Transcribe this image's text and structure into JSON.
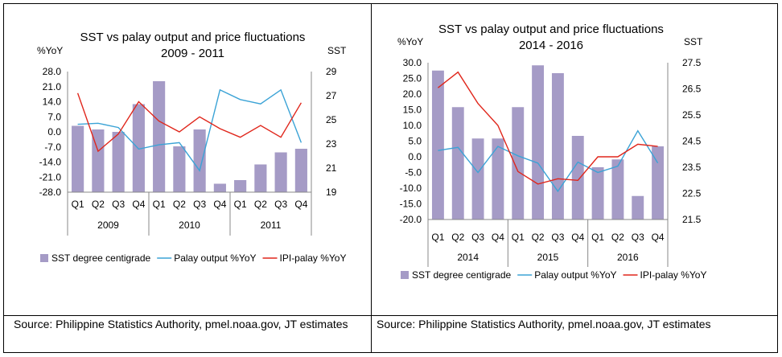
{
  "colors": {
    "bar": "#a59bc6",
    "palay": "#3ba3d6",
    "ipi": "#e0261b",
    "axis": "#888888"
  },
  "charts": [
    {
      "chart_data": {
        "type": "bar+line",
        "title": "SST vs palay output and price fluctuations",
        "subtitle": "2009 - 2011",
        "ylabel_left": "%YoY",
        "ylabel_right": "SST",
        "left_ylim": [
          -28,
          28
        ],
        "left_ticks": [
          "28.0",
          "21.0",
          "14.0",
          "7.0",
          "0.0",
          "-7.0",
          "-14.0",
          "-21.0",
          "-28.0"
        ],
        "right_ylim": [
          19,
          29
        ],
        "right_ticks": [
          "29",
          "27",
          "25",
          "23",
          "21",
          "19"
        ],
        "quarters": [
          "Q1",
          "Q2",
          "Q3",
          "Q4",
          "Q1",
          "Q2",
          "Q3",
          "Q4",
          "Q1",
          "Q2",
          "Q3",
          "Q4"
        ],
        "years": [
          "2009",
          "2010",
          "2011"
        ],
        "series": [
          {
            "name": "SST  degree centigrade",
            "kind": "bar",
            "axis": "right",
            "values": [
              24.5,
              24.2,
              24.0,
              26.3,
              28.2,
              22.8,
              24.2,
              19.7,
              20.0,
              21.3,
              22.3,
              22.6
            ]
          },
          {
            "name": "Palay output %YoY",
            "kind": "line",
            "axis": "left",
            "values": [
              3.5,
              4.0,
              2.0,
              -8.0,
              -6.0,
              -5.0,
              -18.0,
              19.5,
              15.0,
              13.0,
              19.5,
              -5.0
            ]
          },
          {
            "name": "IPI-palay %YoY",
            "kind": "line",
            "axis": "left",
            "values": [
              18.0,
              -9.0,
              -1.0,
              14.0,
              5.0,
              0.0,
              7.0,
              1.5,
              -2.5,
              3.0,
              -2.5,
              13.5
            ]
          }
        ],
        "grid": false,
        "legend": "bottom"
      },
      "source": "Source: Philippine Statistics Authority, pmel.noaa.gov, JT estimates"
    },
    {
      "chart_data": {
        "type": "bar+line",
        "title": "SST vs palay output and price fluctuations",
        "subtitle": "2014 - 2016",
        "ylabel_left": "%YoY",
        "ylabel_right": "SST",
        "left_ylim": [
          -20,
          30
        ],
        "left_ticks": [
          "30.0",
          "25.0",
          "20.0",
          "15.0",
          "10.0",
          "5.0",
          "0.0",
          "-5.0",
          "-10.0",
          "-15.0",
          "-20.0"
        ],
        "right_ylim": [
          21.5,
          27.5
        ],
        "right_ticks": [
          "27.5",
          "26.5",
          "25.5",
          "24.5",
          "23.5",
          "22.5",
          "21.5"
        ],
        "quarters": [
          "Q1",
          "Q2",
          "Q3",
          "Q4",
          "Q1",
          "Q2",
          "Q3",
          "Q4",
          "Q1",
          "Q2",
          "Q3",
          "Q4"
        ],
        "years": [
          "2014",
          "2015",
          "2016"
        ],
        "series": [
          {
            "name": "SST  degree centigrade",
            "kind": "bar",
            "axis": "right",
            "values": [
              27.2,
              25.8,
              24.6,
              24.6,
              25.8,
              27.4,
              27.1,
              24.7,
              23.5,
              23.8,
              22.4,
              24.3
            ]
          },
          {
            "name": "Palay output %YoY",
            "kind": "line",
            "axis": "left",
            "values": [
              2.0,
              3.0,
              -5.0,
              3.3,
              0.3,
              -2.0,
              -11.0,
              -1.7,
              -5.0,
              -3.0,
              8.3,
              -2.0
            ]
          },
          {
            "name": "IPI-palay %YoY",
            "kind": "line",
            "axis": "left",
            "values": [
              22.0,
              27.0,
              17.0,
              10.0,
              -4.7,
              -8.7,
              -7.0,
              -7.5,
              0.0,
              0.0,
              4.0,
              3.3
            ]
          }
        ],
        "grid": false,
        "legend": "bottom"
      },
      "source": "Source: Philippine Statistics Authority, pmel.noaa.gov, JT estimates"
    }
  ]
}
